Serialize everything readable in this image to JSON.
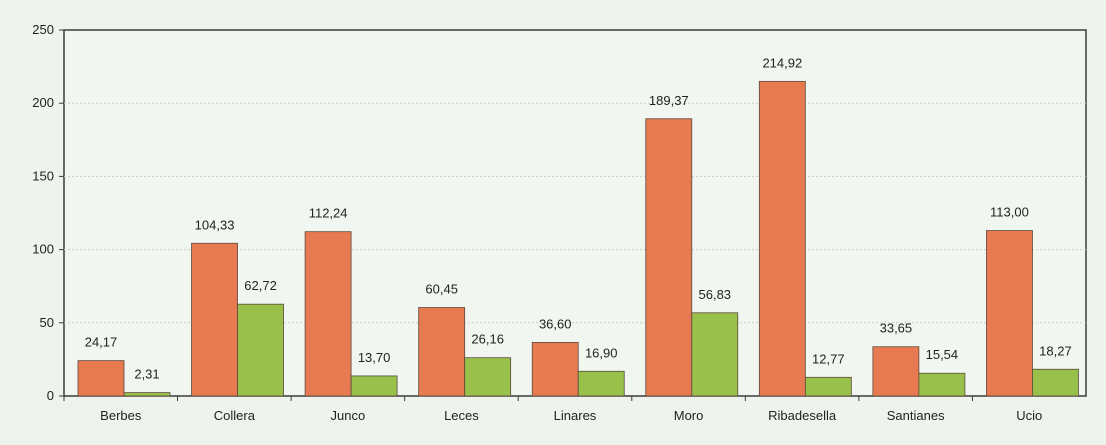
{
  "chart_data": {
    "type": "bar",
    "title": "",
    "xlabel": "",
    "ylabel": "",
    "categories": [
      "Berbes",
      "Collera",
      "Junco",
      "Leces",
      "Linares",
      "Moro",
      "Ribadesella",
      "Santianes",
      "Ucio"
    ],
    "series": [
      {
        "color": "#e87a52",
        "values": [
          24.17,
          104.33,
          112.24,
          60.45,
          36.6,
          189.37,
          214.92,
          33.65,
          113.0
        ],
        "labels": [
          "24,17",
          "104,33",
          "112,24",
          "60,45",
          "36,60",
          "189,37",
          "214,92",
          "33,65",
          "113,00"
        ]
      },
      {
        "color": "#98c04a",
        "values": [
          2.31,
          62.72,
          13.7,
          26.16,
          16.9,
          56.83,
          12.77,
          15.54,
          18.27
        ],
        "labels": [
          "2,31",
          "62,72",
          "13,70",
          "26,16",
          "16,90",
          "56,83",
          "12,77",
          "15,54",
          "18,27"
        ]
      }
    ],
    "ylim": [
      0,
      250
    ],
    "yticks": [
      0,
      50,
      100,
      150,
      200,
      250
    ],
    "grid": true,
    "legend": "none"
  }
}
